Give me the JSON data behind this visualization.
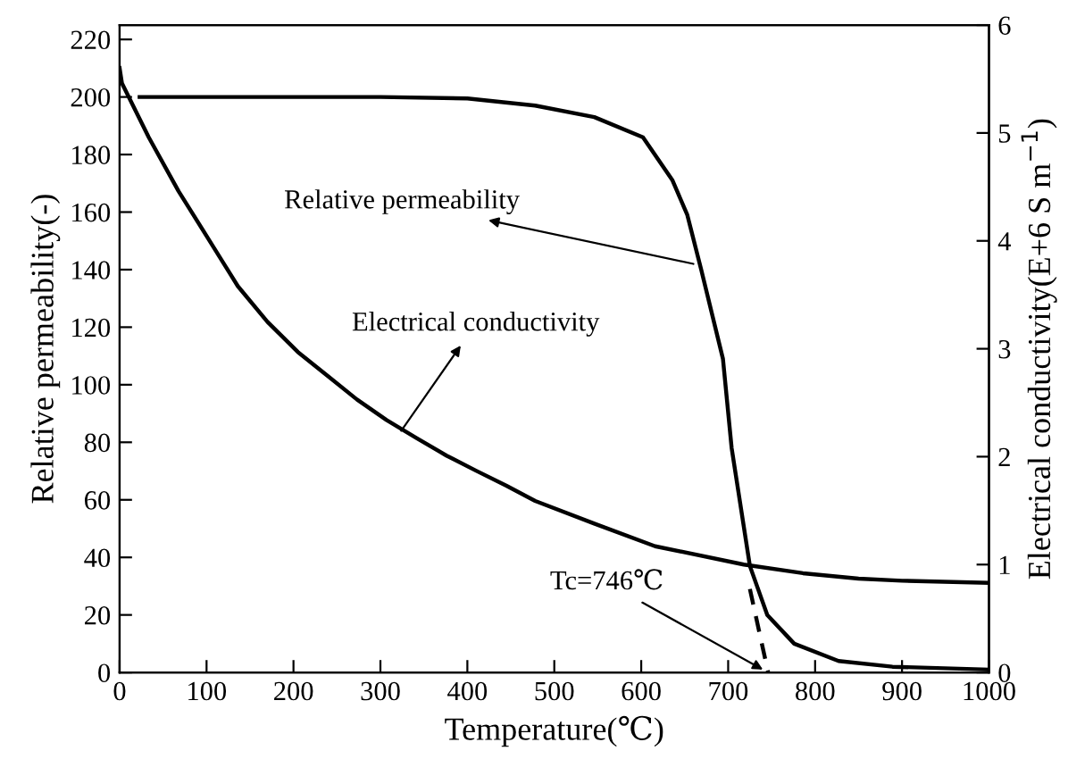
{
  "chart_data": {
    "type": "line",
    "xlabel": "Temperature(℃)",
    "ylabel": "Relative permeability(-)",
    "y2label": "Electrical conductivity(E+6 S m$^{−1}$)",
    "series": [
      {
        "color": "#000000",
        "line_style": "solid",
        "x": [
          23,
          300,
          400,
          478,
          546,
          602,
          636,
          653,
          669,
          694,
          704,
          725,
          745,
          776,
          827,
          889,
          1000
        ],
        "values": [
          200,
          200,
          199.5,
          197,
          193,
          186,
          171,
          159,
          140,
          109,
          78,
          37,
          20,
          10,
          4,
          2,
          1
        ]
      },
      {
        "color": "#000000",
        "line_style": "solid",
        "axis": "y2",
        "x": [
          0,
          2.7,
          33.5,
          67.8,
          102,
          136,
          170,
          205,
          239,
          273,
          307,
          342,
          376,
          410,
          445,
          478,
          546,
          616,
          718,
          786,
          850,
          900,
          1000
        ],
        "values": [
          5.6,
          5.46,
          4.96,
          4.46,
          4.02,
          3.58,
          3.25,
          2.97,
          2.75,
          2.53,
          2.34,
          2.17,
          2.01,
          1.87,
          1.73,
          1.59,
          1.38,
          1.17,
          1.0,
          0.92,
          0.87,
          0.85,
          0.83
        ]
      },
      {
        "color": "#000000",
        "line_style": "dashed",
        "x": [
          725,
          746
        ],
        "values": [
          29,
          0
        ]
      }
    ],
    "annotations": [
      {
        "text": "Relative permeability",
        "x": 660,
        "y": 142
      },
      {
        "text": "Electrical conductivity",
        "x": 324,
        "y": 84
      },
      {
        "text": "Tc=746℃",
        "x": 740,
        "y": 1
      }
    ],
    "xlim": [
      0,
      1000
    ],
    "xticks": [
      0,
      100,
      200,
      300,
      400,
      500,
      600,
      700,
      800,
      900,
      1000
    ],
    "ylim": [
      0,
      225
    ],
    "yticks": [
      0,
      20,
      40,
      60,
      80,
      100,
      120,
      140,
      160,
      180,
      200,
      220
    ],
    "y2lim": [
      0,
      6
    ],
    "y2ticks": [
      0,
      1,
      2,
      3,
      4,
      5,
      6
    ],
    "grid": false,
    "legend": false,
    "marker": "none"
  }
}
